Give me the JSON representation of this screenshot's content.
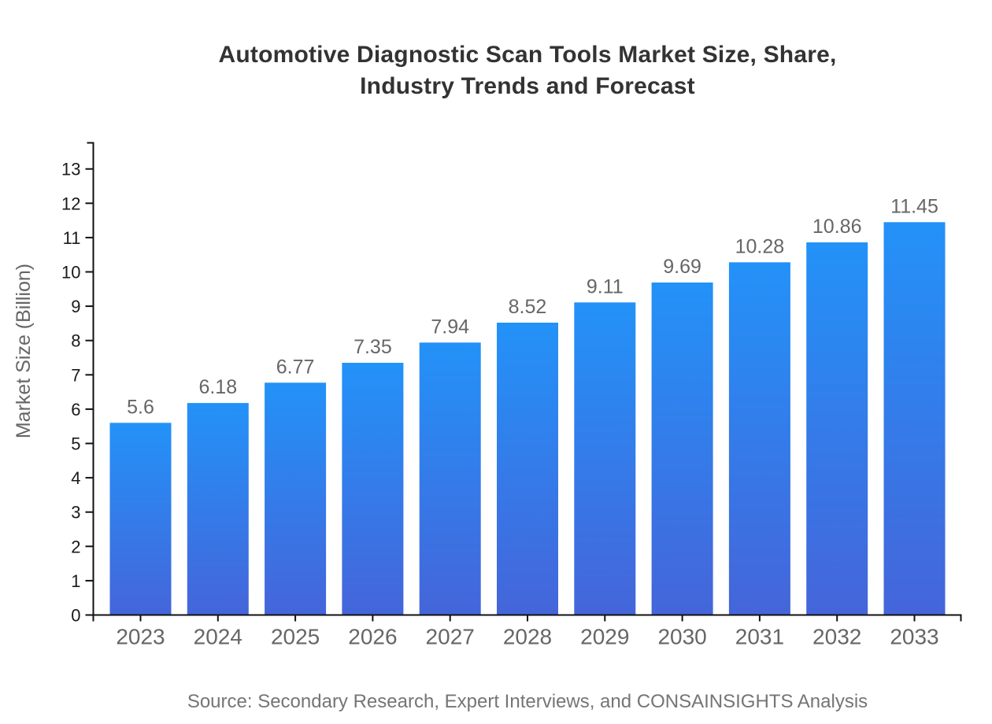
{
  "header": {
    "title_line1": "Automotive Diagnostic Scan Tools Market Size, Share,",
    "title_line2": "Industry Trends and Forecast"
  },
  "chart_data": {
    "type": "bar",
    "title": "Automotive Diagnostic Scan Tools Market Size, Share, Industry Trends and Forecast",
    "categories": [
      "2023",
      "2024",
      "2025",
      "2026",
      "2027",
      "2028",
      "2029",
      "2030",
      "2031",
      "2032",
      "2033"
    ],
    "values": [
      5.6,
      6.18,
      6.77,
      7.35,
      7.94,
      8.52,
      9.11,
      9.69,
      10.28,
      10.86,
      11.45
    ],
    "value_labels": [
      "5.6",
      "6.18",
      "6.77",
      "7.35",
      "7.94",
      "8.52",
      "9.11",
      "9.69",
      "10.28",
      "10.86",
      "11.45"
    ],
    "xlabel": "",
    "ylabel": "Market Size (Billion)",
    "ylim": [
      0,
      13
    ],
    "ytick_step": 1,
    "grid": false,
    "legend": false,
    "bar_color_top": "#2392f8",
    "bar_color_bottom": "#4565da",
    "axis_color": "#111111",
    "y_tick_label_color": "#1a1a1a",
    "x_tick_label_color": "#666666",
    "value_label_color": "#666666"
  },
  "source": {
    "text": "Source: Secondary Research, Expert Interviews, and CONSAINSIGHTS Analysis"
  }
}
